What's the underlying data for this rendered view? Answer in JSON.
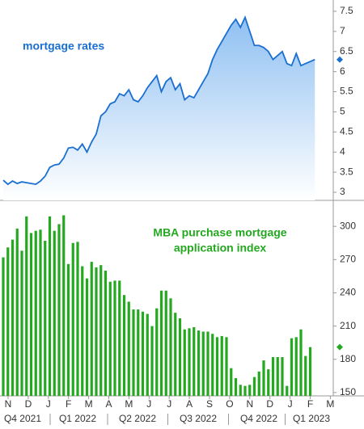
{
  "chart_data": [
    {
      "type": "area-line",
      "annotation": "mortgage rates",
      "color": "#1a6fd0",
      "series": [
        {
          "name": "mortgage rates",
          "color": "#1a6fd0",
          "values": [
            3.3,
            3.2,
            3.28,
            3.22,
            3.26,
            3.24,
            3.22,
            3.2,
            3.28,
            3.4,
            3.62,
            3.68,
            3.7,
            3.85,
            4.1,
            4.12,
            4.05,
            4.2,
            4.0,
            4.25,
            4.45,
            4.9,
            5.0,
            5.2,
            5.25,
            5.45,
            5.4,
            5.55,
            5.3,
            5.25,
            5.4,
            5.6,
            5.75,
            5.9,
            5.5,
            5.75,
            5.85,
            5.55,
            5.7,
            5.3,
            5.4,
            5.35,
            5.55,
            5.75,
            5.95,
            6.3,
            6.55,
            6.75,
            6.95,
            7.15,
            7.3,
            7.1,
            7.35,
            7.0,
            6.65,
            6.65,
            6.6,
            6.5,
            6.3,
            6.4,
            6.5,
            6.2,
            6.15,
            6.45,
            6.15,
            6.2,
            6.25,
            6.3
          ]
        }
      ],
      "ylim": [
        2.8,
        7.7
      ],
      "yticks": [
        3,
        3.5,
        4,
        4.5,
        5,
        5.5,
        6,
        6.5,
        7,
        7.5
      ]
    },
    {
      "type": "bar",
      "annotation": [
        "MBA purchase mortgage",
        "application index"
      ],
      "color": "#23a820",
      "series": [
        {
          "name": "MBA purchase mortgage application index",
          "color": "#23a820",
          "values": [
            272,
            281,
            288,
            298,
            278,
            309,
            294,
            296,
            297,
            287,
            309,
            296,
            302,
            310,
            266,
            285,
            286,
            264,
            253,
            268,
            263,
            265,
            260,
            250,
            251,
            251,
            238,
            232,
            225,
            225,
            223,
            221,
            210,
            226,
            242,
            242,
            235,
            222,
            217,
            207,
            208,
            209,
            206,
            205,
            205,
            203,
            200,
            201,
            200,
            172,
            163,
            157,
            156,
            157,
            164,
            169,
            179,
            171,
            182,
            182,
            182,
            156,
            199,
            200,
            207,
            183,
            191
          ]
        }
      ],
      "ylim": [
        147,
        322
      ],
      "yticks": [
        150,
        180,
        210,
        240,
        270,
        300
      ]
    },
    {
      "type": "time-axis",
      "categories": [
        "N",
        "D",
        "J",
        "F",
        "M",
        "A",
        "M",
        "J",
        "J",
        "A",
        "S",
        "O",
        "N",
        "D",
        "J",
        "F",
        "M"
      ],
      "quarters": [
        "Q4 2021",
        "Q1 2022",
        "Q2 2022",
        "Q3 2022",
        "Q4 2022",
        "Q1 2023"
      ]
    }
  ]
}
